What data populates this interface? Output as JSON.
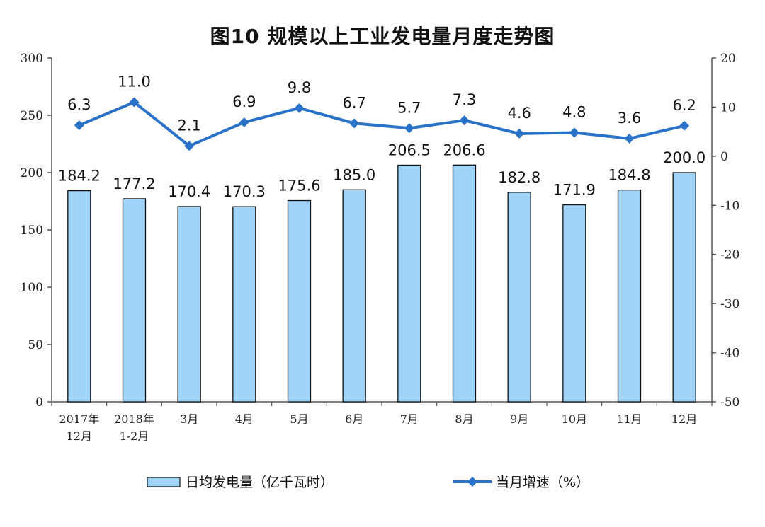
{
  "chart_data": {
    "type": "bar",
    "title": "图10  规模以上工业发电量月度走势图",
    "categories": [
      [
        "2017年",
        "12月"
      ],
      [
        "2018年",
        "1-2月"
      ],
      [
        "3月"
      ],
      [
        "4月"
      ],
      [
        "5月"
      ],
      [
        "6月"
      ],
      [
        "7月"
      ],
      [
        "8月"
      ],
      [
        "9月"
      ],
      [
        "10月"
      ],
      [
        "11月"
      ],
      [
        "12月"
      ]
    ],
    "series": [
      {
        "name": "日均发电量（亿千瓦时）",
        "type": "bar",
        "axis": "left",
        "color": "#9fd3f7",
        "values": [
          184.2,
          177.2,
          170.4,
          170.3,
          175.6,
          185.0,
          206.5,
          206.6,
          182.8,
          171.9,
          184.8,
          200.0
        ],
        "labels": [
          "184.2",
          "177.2",
          "170.4",
          "170.3",
          "175.6",
          "185.0",
          "206.5",
          "206.6",
          "182.8",
          "171.9",
          "184.8",
          "200.0"
        ]
      },
      {
        "name": "当月增速（%）",
        "type": "line",
        "axis": "right",
        "color": "#2a72c8",
        "values": [
          6.3,
          11.0,
          2.1,
          6.9,
          9.8,
          6.7,
          5.7,
          7.3,
          4.6,
          4.8,
          3.6,
          6.2
        ],
        "labels": [
          "6.3",
          "11.0",
          "2.1",
          "6.9",
          "9.8",
          "6.7",
          "5.7",
          "7.3",
          "4.6",
          "4.8",
          "3.6",
          "6.2"
        ]
      }
    ],
    "y_left": {
      "lim": [
        0,
        300
      ],
      "ticks": [
        "0",
        "50",
        "100",
        "150",
        "200",
        "250",
        "300"
      ]
    },
    "y_right": {
      "lim": [
        -50,
        20
      ],
      "ticks": [
        "-50",
        "-40",
        "-30",
        "-20",
        "-10",
        "0",
        "10",
        "20"
      ]
    },
    "legend": "bottom",
    "grid": false
  }
}
